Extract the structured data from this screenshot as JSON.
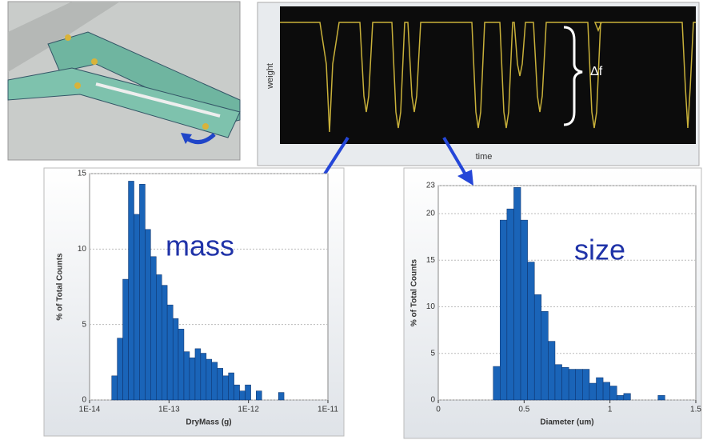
{
  "trace": {
    "y_label": "weight",
    "x_label": "time",
    "annotation": "Δf"
  },
  "chart_data": [
    {
      "type": "histogram",
      "annotation": "mass",
      "x_label": "DryMass (g)",
      "y_label": "% of Total Counts",
      "log_x": true,
      "color": "#1a64b8",
      "bins": [
        1.9e-14,
        2.23e-14,
        2.62e-14,
        3.08e-14,
        3.62e-14,
        4.25e-14,
        5e-14,
        5.87e-14,
        6.9e-14,
        8.1e-14,
        9.5e-14,
        1.12e-13,
        1.31e-13,
        1.54e-13,
        1.81e-13,
        2.13e-13,
        2.5e-13,
        2.94e-13,
        3.45e-13,
        4.06e-13,
        4.77e-13,
        5.6e-13,
        6.58e-13,
        7.73e-13,
        9.08e-13,
        1.07e-12,
        1.25e-12,
        1.47e-12,
        1.73e-12,
        2.03e-12,
        2.39e-12,
        2.8e-12
      ],
      "values": [
        1.6,
        4.1,
        8,
        14.5,
        12.3,
        14.3,
        11.3,
        9.5,
        8.3,
        7.6,
        6.3,
        5.4,
        4.7,
        3.2,
        2.8,
        3.4,
        3.1,
        2.7,
        2.5,
        2.1,
        1.6,
        1.8,
        1.0,
        0.6,
        1.0,
        0,
        0.6,
        0,
        0,
        0,
        0.5
      ],
      "xlim": [
        1e-14,
        1e-11
      ],
      "xticks": [
        {
          "value": 1e-14,
          "label": "1E-14"
        },
        {
          "value": 1e-13,
          "label": "1E-13"
        },
        {
          "value": 1e-12,
          "label": "1E-12"
        },
        {
          "value": 1e-11,
          "label": "1E-11"
        }
      ],
      "ylim": [
        0,
        15
      ],
      "yticks": [
        0,
        5,
        10,
        15
      ],
      "grid": true
    },
    {
      "type": "histogram",
      "annotation": "size",
      "x_label": "Diameter (um)",
      "y_label": "% of Total Counts",
      "log_x": false,
      "color": "#1a64b8",
      "bins": [
        0.32,
        0.36,
        0.4,
        0.44,
        0.48,
        0.52,
        0.56,
        0.6,
        0.64,
        0.68,
        0.72,
        0.76,
        0.8,
        0.84,
        0.88,
        0.92,
        0.96,
        1.0,
        1.04,
        1.08,
        1.12,
        1.16,
        1.2,
        1.24,
        1.28,
        1.32
      ],
      "values": [
        3.6,
        19.3,
        20.5,
        22.8,
        19.3,
        14.8,
        11.3,
        9.5,
        6.3,
        3.8,
        3.5,
        3.3,
        3.3,
        3.3,
        1.8,
        2.4,
        1.9,
        1.5,
        0.5,
        0.7,
        0,
        0,
        0,
        0,
        0.5
      ],
      "xlim": [
        0,
        1.5
      ],
      "xticks": [
        0,
        0.5,
        1,
        1.5
      ],
      "ylim": [
        0,
        23
      ],
      "yticks": [
        0,
        5,
        10,
        15,
        20,
        23
      ],
      "grid": true
    }
  ]
}
